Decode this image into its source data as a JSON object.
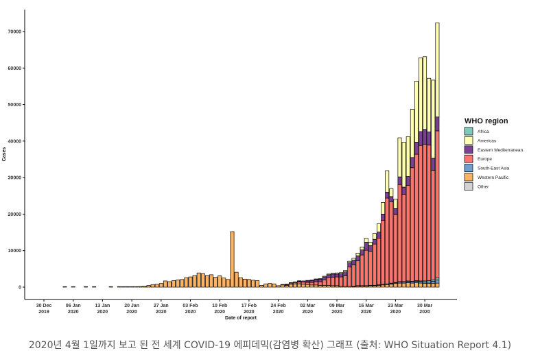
{
  "chart_data": {
    "type": "bar",
    "stacked": true,
    "xlabel": "Date of report",
    "ylabel": "Cases",
    "ylim": [
      0,
      74000
    ],
    "yticks": [
      0,
      10000,
      20000,
      30000,
      40000,
      50000,
      60000,
      70000
    ],
    "x_start": "30 Dec 2019",
    "x_end": "31 Mar 2020",
    "x_ticks": [
      {
        "day": "30 Dec",
        "year": "2019"
      },
      {
        "day": "06 Jan",
        "year": "2020"
      },
      {
        "day": "13 Jan",
        "year": "2020"
      },
      {
        "day": "20 Jan",
        "year": "2020"
      },
      {
        "day": "27 Jan",
        "year": "2020"
      },
      {
        "day": "03 Feb",
        "year": "2020"
      },
      {
        "day": "10 Feb",
        "year": "2020"
      },
      {
        "day": "17 Feb",
        "year": "2020"
      },
      {
        "day": "24 Feb",
        "year": "2020"
      },
      {
        "day": "02 Mar",
        "year": "2020"
      },
      {
        "day": "09 Mar",
        "year": "2020"
      },
      {
        "day": "16 Mar",
        "year": "2020"
      },
      {
        "day": "23 Mar",
        "year": "2020"
      },
      {
        "day": "30 Mar",
        "year": "2020"
      }
    ],
    "grid": false,
    "legend_title": "WHO region",
    "legend_position": "right",
    "series": [
      {
        "name": "Africa",
        "color": "#7fc9bb"
      },
      {
        "name": "Americas",
        "color": "#ffffb3"
      },
      {
        "name": "Eastern Mediterranean",
        "color": "#7b3f93"
      },
      {
        "name": "Europe",
        "color": "#f8766d"
      },
      {
        "name": "South-East Asia",
        "color": "#6f9ed0"
      },
      {
        "name": "Western Pacific",
        "color": "#fdb462"
      },
      {
        "name": "Other",
        "color": "#d3d3d3"
      }
    ],
    "daily": [
      {
        "date": "2020-01-04",
        "Western Pacific": 100
      },
      {
        "date": "2020-01-06",
        "Western Pacific": 100
      },
      {
        "date": "2020-01-09",
        "Western Pacific": 100
      },
      {
        "date": "2020-01-11",
        "Western Pacific": 100
      },
      {
        "date": "2020-01-15",
        "Western Pacific": 100
      },
      {
        "date": "2020-01-17",
        "Western Pacific": 100
      },
      {
        "date": "2020-01-18",
        "Western Pacific": 100
      },
      {
        "date": "2020-01-19",
        "Western Pacific": 100
      },
      {
        "date": "2020-01-20",
        "Western Pacific": 100
      },
      {
        "date": "2020-01-21",
        "Western Pacific": 150
      },
      {
        "date": "2020-01-22",
        "Western Pacific": 200
      },
      {
        "date": "2020-01-23",
        "Western Pacific": 300
      },
      {
        "date": "2020-01-24",
        "Western Pacific": 450
      },
      {
        "date": "2020-01-25",
        "Western Pacific": 700
      },
      {
        "date": "2020-01-26",
        "Western Pacific": 800
      },
      {
        "date": "2020-01-27",
        "Western Pacific": 1000
      },
      {
        "date": "2020-01-28",
        "Western Pacific": 1700
      },
      {
        "date": "2020-01-29",
        "Western Pacific": 1500
      },
      {
        "date": "2020-01-30",
        "Western Pacific": 1800
      },
      {
        "date": "2020-01-31",
        "Western Pacific": 2000
      },
      {
        "date": "2020-02-01",
        "Western Pacific": 2100
      },
      {
        "date": "2020-02-02",
        "Western Pacific": 2600
      },
      {
        "date": "2020-02-03",
        "Western Pacific": 2800
      },
      {
        "date": "2020-02-04",
        "Western Pacific": 3200
      },
      {
        "date": "2020-02-05",
        "Western Pacific": 3900
      },
      {
        "date": "2020-02-06",
        "Western Pacific": 3700
      },
      {
        "date": "2020-02-07",
        "Western Pacific": 3200
      },
      {
        "date": "2020-02-08",
        "Western Pacific": 3400
      },
      {
        "date": "2020-02-09",
        "Western Pacific": 2700
      },
      {
        "date": "2020-02-10",
        "Western Pacific": 3100
      },
      {
        "date": "2020-02-11",
        "Western Pacific": 2500
      },
      {
        "date": "2020-02-12",
        "Western Pacific": 2100
      },
      {
        "date": "2020-02-13",
        "Western Pacific": 15200
      },
      {
        "date": "2020-02-14",
        "Western Pacific": 4100
      },
      {
        "date": "2020-02-15",
        "Western Pacific": 2600
      },
      {
        "date": "2020-02-16",
        "Western Pacific": 2200
      },
      {
        "date": "2020-02-17",
        "Western Pacific": 2100
      },
      {
        "date": "2020-02-18",
        "Western Pacific": 1900
      },
      {
        "date": "2020-02-19",
        "Western Pacific": 1800
      },
      {
        "date": "2020-02-20",
        "Western Pacific": 500
      },
      {
        "date": "2020-02-21",
        "Western Pacific": 900
      },
      {
        "date": "2020-02-22",
        "Western Pacific": 1000
      },
      {
        "date": "2020-02-23",
        "Western Pacific": 900
      },
      {
        "date": "2020-02-24",
        "Western Pacific": 400
      },
      {
        "date": "2020-02-25",
        "Western Pacific": 600,
        "Europe": 100
      },
      {
        "date": "2020-02-26",
        "Western Pacific": 500,
        "Europe": 200,
        "Eastern Mediterranean": 100
      },
      {
        "date": "2020-02-27",
        "Western Pacific": 800,
        "Europe": 300,
        "Eastern Mediterranean": 100
      },
      {
        "date": "2020-02-28",
        "Western Pacific": 900,
        "Europe": 400,
        "Eastern Mediterranean": 100
      },
      {
        "date": "2020-02-29",
        "Western Pacific": 900,
        "Europe": 500,
        "Eastern Mediterranean": 200,
        "Other": 100
      },
      {
        "date": "2020-03-01",
        "Western Pacific": 800,
        "Europe": 600,
        "Eastern Mediterranean": 300
      },
      {
        "date": "2020-03-02",
        "Western Pacific": 700,
        "Europe": 600,
        "Eastern Mediterranean": 400,
        "Americas": 100
      },
      {
        "date": "2020-03-03",
        "Western Pacific": 600,
        "Europe": 700,
        "Eastern Mediterranean": 500,
        "Americas": 100
      },
      {
        "date": "2020-03-04",
        "Western Pacific": 600,
        "Europe": 900,
        "Eastern Mediterranean": 600,
        "Americas": 100
      },
      {
        "date": "2020-03-05",
        "Western Pacific": 500,
        "Europe": 1000,
        "Eastern Mediterranean": 700,
        "Americas": 100
      },
      {
        "date": "2020-03-06",
        "Western Pacific": 500,
        "Europe": 1500,
        "Eastern Mediterranean": 800,
        "Americas": 200
      },
      {
        "date": "2020-03-07",
        "Western Pacific": 500,
        "Europe": 2100,
        "Eastern Mediterranean": 800,
        "Americas": 200
      },
      {
        "date": "2020-03-08",
        "Western Pacific": 400,
        "Europe": 2300,
        "Eastern Mediterranean": 900,
        "Americas": 200
      },
      {
        "date": "2020-03-09",
        "Western Pacific": 400,
        "Europe": 2400,
        "Eastern Mediterranean": 800,
        "Americas": 300
      },
      {
        "date": "2020-03-10",
        "Western Pacific": 300,
        "Europe": 2500,
        "Eastern Mediterranean": 900,
        "Americas": 300
      },
      {
        "date": "2020-03-11",
        "Western Pacific": 300,
        "Europe": 2800,
        "Eastern Mediterranean": 1100,
        "Americas": 400
      },
      {
        "date": "2020-03-12",
        "Western Pacific": 300,
        "Europe": 5200,
        "Eastern Mediterranean": 1200,
        "Americas": 400
      },
      {
        "date": "2020-03-13",
        "Western Pacific": 200,
        "Europe": 5800,
        "Eastern Mediterranean": 1300,
        "Americas": 500,
        "South-East Asia": 100
      },
      {
        "date": "2020-03-14",
        "Western Pacific": 300,
        "Europe": 6800,
        "Eastern Mediterranean": 1400,
        "Americas": 700,
        "South-East Asia": 100
      },
      {
        "date": "2020-03-15",
        "Western Pacific": 300,
        "Europe": 8400,
        "Eastern Mediterranean": 1400,
        "Americas": 800,
        "South-East Asia": 100
      },
      {
        "date": "2020-03-16",
        "Western Pacific": 300,
        "Europe": 9700,
        "Eastern Mediterranean": 2200,
        "Americas": 1100,
        "South-East Asia": 100
      },
      {
        "date": "2020-03-17",
        "Western Pacific": 400,
        "Europe": 9300,
        "Eastern Mediterranean": 1600,
        "Americas": 900,
        "South-East Asia": 100
      },
      {
        "date": "2020-03-18",
        "Western Pacific": 400,
        "Europe": 11300,
        "Eastern Mediterranean": 1300,
        "Americas": 1600,
        "South-East Asia": 100
      },
      {
        "date": "2020-03-19",
        "Western Pacific": 500,
        "Europe": 12700,
        "Eastern Mediterranean": 1700,
        "Americas": 2300,
        "South-East Asia": 200
      },
      {
        "date": "2020-03-20",
        "Western Pacific": 600,
        "Europe": 17500,
        "Eastern Mediterranean": 1700,
        "Americas": 3200,
        "South-East Asia": 200
      },
      {
        "date": "2020-03-21",
        "Western Pacific": 700,
        "Europe": 23500,
        "Eastern Mediterranean": 1600,
        "Americas": 5900,
        "South-East Asia": 200
      },
      {
        "date": "2020-03-22",
        "Western Pacific": 800,
        "Europe": 22300,
        "Eastern Mediterranean": 1400,
        "Americas": 2200,
        "South-East Asia": 200,
        "Africa": 100
      },
      {
        "date": "2020-03-23",
        "Western Pacific": 1000,
        "Europe": 18600,
        "Eastern Mediterranean": 1600,
        "Americas": 2600,
        "South-East Asia": 200,
        "Africa": 100
      },
      {
        "date": "2020-03-24",
        "Western Pacific": 1100,
        "Europe": 26600,
        "Eastern Mediterranean": 2100,
        "Americas": 10700,
        "South-East Asia": 300,
        "Africa": 100
      },
      {
        "date": "2020-03-25",
        "Western Pacific": 1100,
        "Europe": 23900,
        "Eastern Mediterranean": 2000,
        "Americas": 12300,
        "South-East Asia": 300,
        "Africa": 100
      },
      {
        "date": "2020-03-26",
        "Western Pacific": 1200,
        "Europe": 26200,
        "Eastern Mediterranean": 2400,
        "Americas": 10900,
        "South-East Asia": 300,
        "Africa": 200
      },
      {
        "date": "2020-03-27",
        "Western Pacific": 1100,
        "Europe": 31100,
        "Eastern Mediterranean": 2800,
        "Americas": 13200,
        "South-East Asia": 300,
        "Africa": 200
      },
      {
        "date": "2020-03-28",
        "Western Pacific": 1200,
        "Europe": 34600,
        "Eastern Mediterranean": 3300,
        "Americas": 16700,
        "South-East Asia": 400,
        "Africa": 200
      },
      {
        "date": "2020-03-29",
        "Western Pacific": 1100,
        "Europe": 37100,
        "Eastern Mediterranean": 3800,
        "Americas": 20200,
        "South-East Asia": 400,
        "Africa": 200
      },
      {
        "date": "2020-03-30",
        "Western Pacific": 1000,
        "Europe": 37400,
        "Eastern Mediterranean": 4100,
        "Americas": 19900,
        "South-East Asia": 400,
        "Africa": 300
      },
      {
        "date": "2020-03-31",
        "Western Pacific": 1000,
        "Europe": 37100,
        "Eastern Mediterranean": 3600,
        "Americas": 14700,
        "South-East Asia": 400,
        "Africa": 400
      },
      {
        "date": "2020-04-01",
        "Western Pacific": 1000,
        "Europe": 30000,
        "Eastern Mediterranean": 3300,
        "Americas": 21400,
        "South-East Asia": 600,
        "Africa": 400
      },
      {
        "date": "2020-04-02",
        "Western Pacific": 1100,
        "Europe": 40300,
        "Eastern Mediterranean": 3800,
        "Americas": 25800,
        "South-East Asia": 900,
        "Africa": 500
      }
    ]
  },
  "caption": "2020년 4월 1일까지 보고 된 전 세계 COVID-19 에피데믹(감염병 확산) 그래프 (출처: WHO Situation Report 4.1)"
}
